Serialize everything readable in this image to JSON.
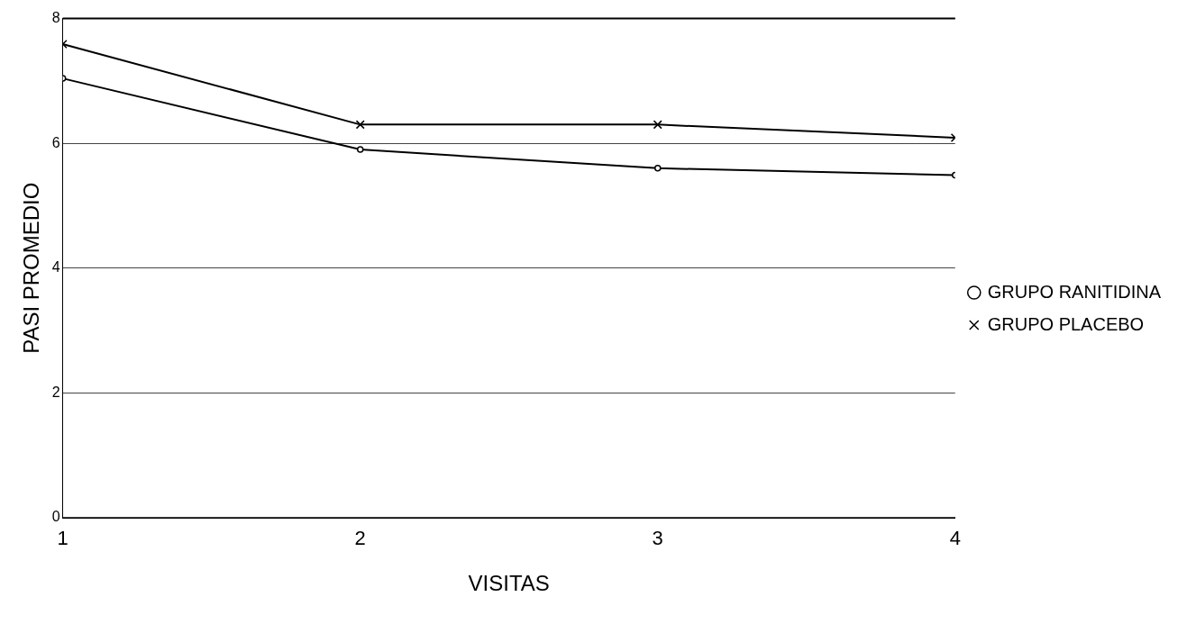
{
  "chart_data": {
    "type": "line",
    "xlabel": "VISITAS",
    "ylabel": "PASI PROMEDIO",
    "x": [
      1,
      2,
      3,
      4
    ],
    "xlim": [
      1,
      4
    ],
    "xticks": [
      1,
      2,
      3,
      4
    ],
    "ylim": [
      0,
      8
    ],
    "yticks": [
      0,
      2,
      4,
      6,
      8
    ],
    "grid": "y",
    "legend": "right",
    "line_style": "solid",
    "series": [
      {
        "name": "GRUPO RANITIDINA",
        "color": "#000000",
        "marker": "circle",
        "values": [
          7.04,
          5.9,
          5.6,
          5.49
        ]
      },
      {
        "name": "GRUPO PLACEBO",
        "color": "#000000",
        "marker": "cross",
        "values": [
          7.59,
          6.3,
          6.3,
          6.09
        ]
      }
    ]
  }
}
